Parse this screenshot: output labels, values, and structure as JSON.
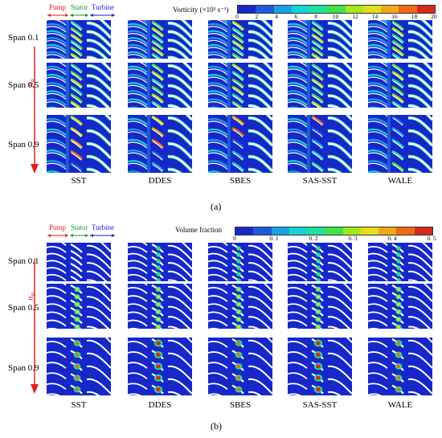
{
  "colors": {
    "pump": "#e02020",
    "stator": "#1a9a1a",
    "turbine": "#1a1ae0",
    "arrow": "#e02020",
    "field_base": "#1a33c9"
  },
  "panel_a": {
    "regions": {
      "pump": "Pump",
      "stator": "Stator",
      "turbine": "Turbine"
    },
    "axis_label": "n",
    "axis_subscript": "P",
    "colorbar": {
      "title": "Vorticity  (×10³ s⁻¹)",
      "ticks": [
        "0",
        "2",
        "4",
        "6",
        "8",
        "10",
        "12",
        "14",
        "16",
        "18",
        "20"
      ],
      "colors": [
        "#1628c8",
        "#1f5bd8",
        "#1aa0e6",
        "#14d4d8",
        "#1fe0a0",
        "#3fe24a",
        "#a0e81a",
        "#e2e01a",
        "#f0a81a",
        "#ee6a14",
        "#d8281a"
      ]
    },
    "rows": [
      "Span 0.1",
      "Span 0.5",
      "Span 0.9"
    ],
    "models": [
      "SST",
      "DDES",
      "SBES",
      "SAS-SST",
      "WALE"
    ],
    "caption": "(a)"
  },
  "panel_b": {
    "regions": {
      "pump": "Pump",
      "stator": "Stator",
      "turbine": "Turbine"
    },
    "axis_label": "n",
    "axis_subscript": "P",
    "colorbar": {
      "title": "Volume fraction",
      "ticks": [
        "0",
        "0. 1",
        "0. 2",
        "0. 3",
        "0. 4",
        "0. 5"
      ],
      "colors": [
        "#1628c8",
        "#1f5bd8",
        "#1aa0e6",
        "#14d4d8",
        "#1fe0a0",
        "#3fe24a",
        "#a0e81a",
        "#e2e01a",
        "#f0a81a",
        "#ee6a14",
        "#d8281a"
      ]
    },
    "rows": [
      "Span 0.1",
      "Span 0.5",
      "Span 0.9"
    ],
    "models": [
      "SST",
      "DDES",
      "SBES",
      "SAS-SST",
      "WALE"
    ],
    "caption": "(b)"
  }
}
